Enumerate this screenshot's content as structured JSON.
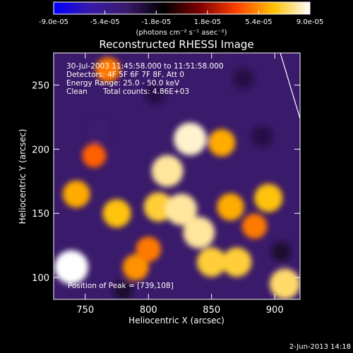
{
  "chart_data": {
    "type": "heatmap",
    "title": "Reconstructed RHESSI Image",
    "xlabel": "Heliocentric X (arcsec)",
    "ylabel": "Heliocentric Y (arcsec)",
    "xlim": [
      725,
      920
    ],
    "ylim": [
      83,
      275
    ],
    "x_ticks": [
      750,
      800,
      850,
      900
    ],
    "y_ticks": [
      100,
      150,
      200,
      250
    ],
    "grid": false,
    "colorbar": {
      "position": "top",
      "min": -9e-05,
      "max": 9e-05,
      "tick_labels": [
        "-9.0e-05",
        "-5.4e-05",
        "-1.8e-05",
        "1.8e-05",
        "5.4e-05",
        "9.0e-05"
      ],
      "unit_label": "(photons cm⁻² s⁻¹ asec⁻²)",
      "colormap_stops": [
        "#0000ff",
        "#3a1aa8",
        "#3a1a6a",
        "#000000",
        "#800000",
        "#ff4000",
        "#ffc000",
        "#ffffff"
      ]
    },
    "annotations": {
      "time_range": "30-Jul-2003 11:45:58.000 to 11:51:58.000",
      "detectors": "Detectors: 4F 5F 6F 7F 8F, Att 0",
      "energy_range": "Energy Range: 25.0 - 50.0 keV",
      "algorithm": "Clean",
      "total_counts": "Total counts: 4.86E+03",
      "peak_position": "Position of Peak = [739,108]"
    },
    "sources": [
      {
        "x": 739,
        "y": 108,
        "value": 9e-05
      },
      {
        "x": 743,
        "y": 165,
        "value": 6e-05
      },
      {
        "x": 757,
        "y": 195,
        "value": 4.5e-05
      },
      {
        "x": 775,
        "y": 150,
        "value": 6.5e-05
      },
      {
        "x": 790,
        "y": 108,
        "value": 5.5e-05
      },
      {
        "x": 800,
        "y": 122,
        "value": 5e-05
      },
      {
        "x": 808,
        "y": 155,
        "value": 7e-05
      },
      {
        "x": 815,
        "y": 183,
        "value": 8e-05
      },
      {
        "x": 826,
        "y": 153,
        "value": 8e-05
      },
      {
        "x": 833,
        "y": 208,
        "value": 8.5e-05
      },
      {
        "x": 840,
        "y": 135,
        "value": 8e-05
      },
      {
        "x": 850,
        "y": 112,
        "value": 7e-05
      },
      {
        "x": 858,
        "y": 205,
        "value": 6e-05
      },
      {
        "x": 865,
        "y": 155,
        "value": 6e-05
      },
      {
        "x": 870,
        "y": 112,
        "value": 7e-05
      },
      {
        "x": 884,
        "y": 140,
        "value": 5e-05
      },
      {
        "x": 895,
        "y": 162,
        "value": 6.5e-05
      },
      {
        "x": 908,
        "y": 95,
        "value": 7.5e-05
      },
      {
        "x": 768,
        "y": 262,
        "value": 5e-05
      },
      {
        "x": 805,
        "y": 243,
        "value": -3e-05
      },
      {
        "x": 760,
        "y": 215,
        "value": -4e-05
      },
      {
        "x": 875,
        "y": 255,
        "value": -3e-05
      },
      {
        "x": 890,
        "y": 210,
        "value": -3e-05
      },
      {
        "x": 905,
        "y": 120,
        "value": -2.5e-05
      },
      {
        "x": 780,
        "y": 90,
        "value": -2.5e-05
      }
    ]
  },
  "footer_date": "2-Jun-2013 14:18"
}
